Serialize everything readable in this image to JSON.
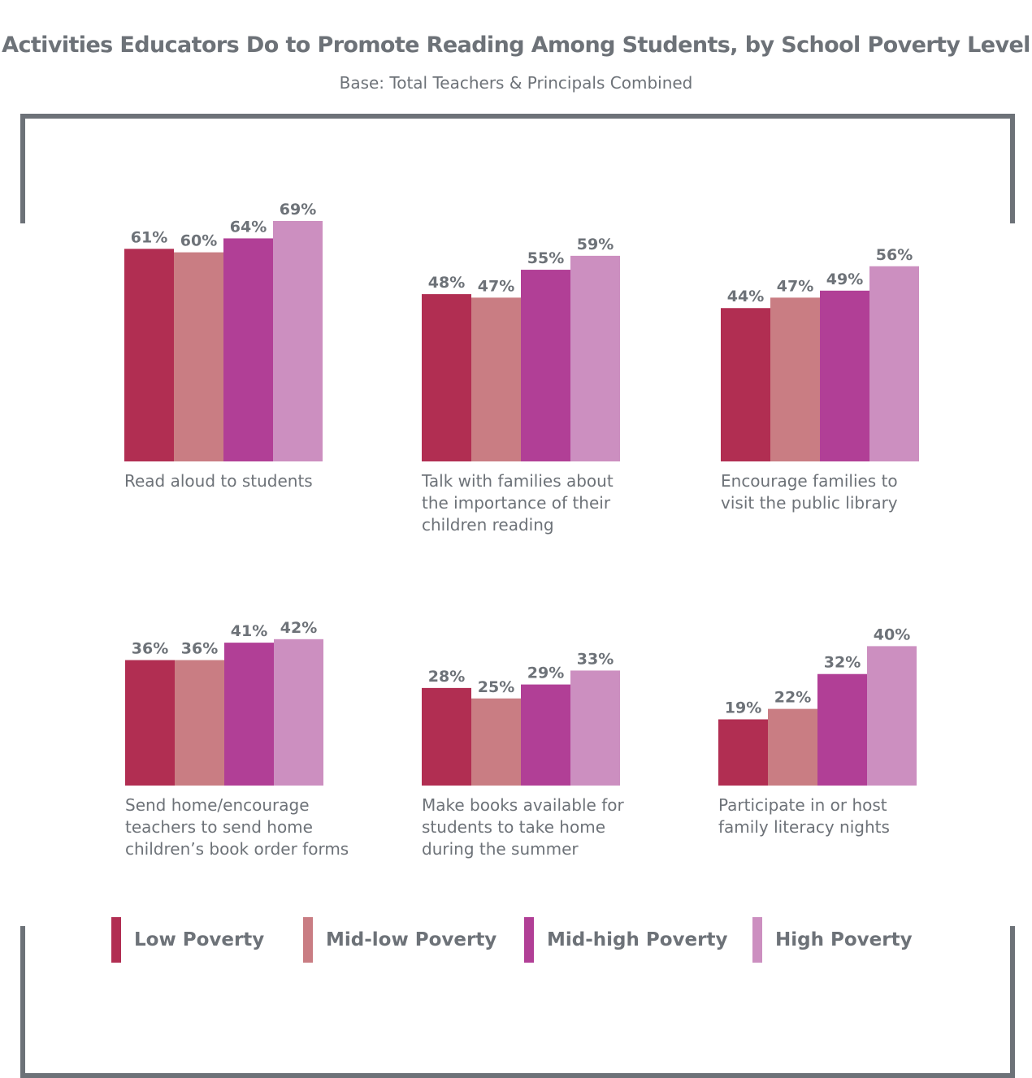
{
  "title": "Activities Educators Do to Promote Reading Among Students, by School Poverty Level",
  "subtitle": "Base: Total Teachers & Principals Combined",
  "legend": [
    {
      "label": "Low Poverty",
      "color": "#b12e52"
    },
    {
      "label": "Mid-low Poverty",
      "color": "#c97d83"
    },
    {
      "label": "Mid-high Poverty",
      "color": "#b13f96"
    },
    {
      "label": "High Poverty",
      "color": "#cc8fc0"
    }
  ],
  "chart_data": {
    "type": "bar",
    "series": [
      {
        "name": "Low Poverty",
        "color": "#b12e52"
      },
      {
        "name": "Mid-low Poverty",
        "color": "#c97d83"
      },
      {
        "name": "Mid-high Poverty",
        "color": "#b13f96"
      },
      {
        "name": "High Poverty",
        "color": "#cc8fc0"
      }
    ],
    "groups": [
      {
        "label": "Read aloud to students",
        "label_lines": [
          "Read aloud to students"
        ],
        "values": [
          61,
          60,
          64,
          69
        ],
        "value_labels": [
          "61%",
          "60%",
          "64%",
          "69%"
        ]
      },
      {
        "label": "Talk with families about the importance of their children reading",
        "label_lines": [
          "Talk with families about",
          "the importance of their",
          "children reading"
        ],
        "values": [
          48,
          47,
          55,
          59
        ],
        "value_labels": [
          "48%",
          "47%",
          "55%",
          "59%"
        ]
      },
      {
        "label": "Encourage families to visit the public library",
        "label_lines": [
          "Encourage families to",
          "visit the public library"
        ],
        "values": [
          44,
          47,
          49,
          56
        ],
        "value_labels": [
          "44%",
          "47%",
          "49%",
          "56%"
        ]
      },
      {
        "label": "Send home/encourage teachers to send home children’s book order forms",
        "label_lines": [
          "Send home/encourage",
          "teachers to send home",
          "children’s book order forms"
        ],
        "values": [
          36,
          36,
          41,
          42
        ],
        "value_labels": [
          "36%",
          "36%",
          "41%",
          "42%"
        ]
      },
      {
        "label": "Make books available for students to take home during the summer",
        "label_lines": [
          "Make books available for",
          "students to take home",
          "during the summer"
        ],
        "values": [
          28,
          25,
          29,
          33
        ],
        "value_labels": [
          "28%",
          "25%",
          "29%",
          "33%"
        ]
      },
      {
        "label": "Participate in or host family literacy nights",
        "label_lines": [
          "Participate in or host",
          "family literacy nights"
        ],
        "values": [
          19,
          22,
          32,
          40
        ],
        "value_labels": [
          "19%",
          "22%",
          "32%",
          "40%"
        ]
      }
    ],
    "unit": "%"
  }
}
